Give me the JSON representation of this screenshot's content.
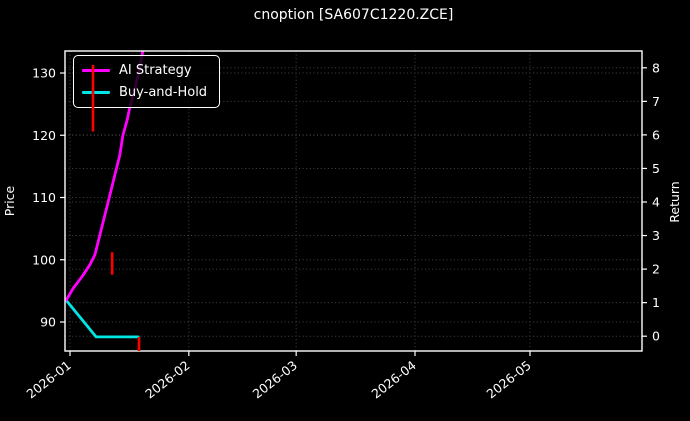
{
  "chart_data": {
    "type": "line",
    "title": "cnoption [SA607C1220.ZCE]",
    "colors": {
      "background": "#000000",
      "foreground": "#ffffff",
      "grid": "#9a9a9a",
      "ai_strategy": "#ff00ff",
      "buy_and_hold": "#00e5e5",
      "trade_marker": "#ff0000"
    },
    "x_axis": {
      "tick_labels": [
        "2026-01",
        "2026-02",
        "2026-03",
        "2026-04",
        "2026-05"
      ],
      "tick_day_offsets": [
        0,
        31,
        59,
        90,
        120
      ],
      "start_date": "2026-01-01",
      "visible_range_days": [
        -1.3,
        149
      ],
      "rotation_deg": -38
    },
    "left_axis": {
      "label": "Price",
      "ticks": [
        90,
        100,
        110,
        120,
        130
      ],
      "range_est": [
        85.3,
        133.5
      ]
    },
    "right_axis": {
      "label": "Return",
      "ticks": [
        0,
        1,
        2,
        3,
        4,
        5,
        6,
        7,
        8
      ],
      "range_est": [
        -0.44,
        8.5
      ]
    },
    "grid": {
      "visible": true,
      "style": "dotted"
    },
    "legend": {
      "position": "upper-left",
      "entries": [
        {
          "label": "AI Strategy",
          "color": "#ff00ff"
        },
        {
          "label": "Buy-and-Hold",
          "color": "#00e5e5"
        }
      ]
    },
    "series": [
      {
        "name": "AI Strategy",
        "color": "#ff00ff",
        "axis": "price",
        "note": "rises past top of axes (~133+) and is clipped behind the legend",
        "points": [
          {
            "d": -1.0,
            "v": 93.5
          },
          {
            "d": 0.8,
            "v": 95.4
          },
          {
            "d": 3.4,
            "v": 97.5
          },
          {
            "d": 5.2,
            "v": 99.2
          },
          {
            "d": 6.5,
            "v": 100.8
          },
          {
            "d": 7.8,
            "v": 104.0
          },
          {
            "d": 9.1,
            "v": 107.2
          },
          {
            "d": 10.4,
            "v": 110.4
          },
          {
            "d": 11.7,
            "v": 113.6
          },
          {
            "d": 13.0,
            "v": 116.8
          },
          {
            "d": 13.8,
            "v": 120.0
          },
          {
            "d": 14.9,
            "v": 122.4
          },
          {
            "d": 15.7,
            "v": 124.8
          },
          {
            "d": 17.0,
            "v": 127.6
          },
          {
            "d": 18.0,
            "v": 130.4
          },
          {
            "d": 19.0,
            "v": 133.5
          },
          {
            "d": 19.6,
            "v": 135.5
          }
        ]
      },
      {
        "name": "Buy-and-Hold",
        "color": "#00e5e5",
        "axis": "price",
        "points": [
          {
            "d": -1.0,
            "v": 93.5
          },
          {
            "d": 6.8,
            "v": 87.6
          },
          {
            "d": 17.8,
            "v": 87.6
          }
        ]
      }
    ],
    "event_markers": {
      "color": "#ff0000",
      "shape": "vertical-line",
      "items": [
        {
          "d": 6.0,
          "low": 120.6,
          "high": 131.3
        },
        {
          "d": 11.0,
          "low": 97.6,
          "high": 101.2
        },
        {
          "d": 18.0,
          "low": 85.3,
          "high": 87.6
        }
      ]
    }
  }
}
